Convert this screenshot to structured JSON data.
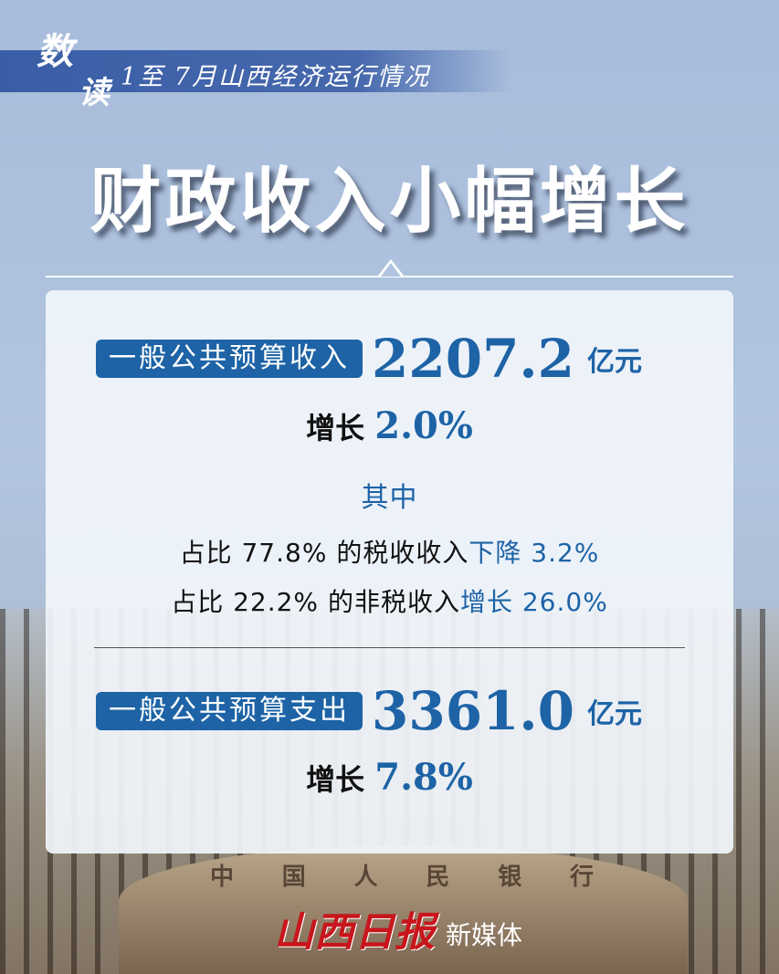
{
  "header": {
    "mark_1": "数",
    "mark_2": "读",
    "subtitle": "1至 7月山西经济运行情况"
  },
  "title": "财政收入小幅增长",
  "revenue": {
    "label": "一般公共预算收入",
    "value": "2207.2",
    "unit": "亿元",
    "growth_label": "增长",
    "growth": "2.0%"
  },
  "breakdown": {
    "heading": "其中",
    "tax": {
      "prefix": "占比 77.8% 的税收收入",
      "change": "下降 3.2%"
    },
    "nontax": {
      "prefix": "占比 22.2% 的非税收入",
      "change": "增长 26.0%"
    }
  },
  "expenditure": {
    "label": "一般公共预算支出",
    "value": "3361.0",
    "unit": "亿元",
    "growth_label": "增长",
    "growth": "7.8%"
  },
  "building_sign": [
    "中",
    "国",
    "人",
    "民",
    "银",
    "行"
  ],
  "footer": {
    "logo": "山西日报",
    "suffix": "新媒体"
  },
  "colors": {
    "accent": "#1d63a6",
    "band": "#3a5ea6",
    "logo_red": "#c8161d"
  }
}
